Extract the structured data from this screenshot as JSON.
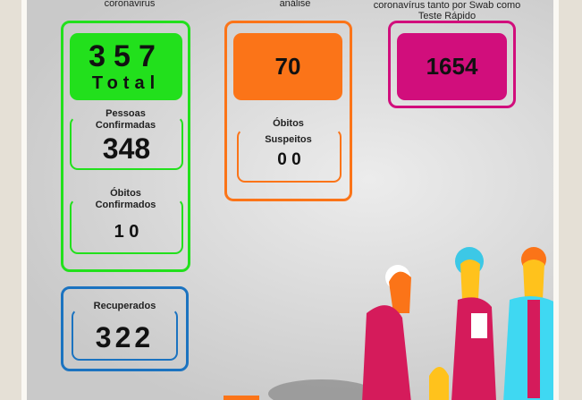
{
  "captions": {
    "col1": "coronavirus",
    "col2": "análise",
    "col3_line1": "coronavírus tanto por Swab como",
    "col3_line2": "Teste Rápido"
  },
  "total": {
    "value": "357",
    "label": "Total"
  },
  "confirmados": {
    "label_line1": "Pessoas",
    "label_line2": "Confirmadas",
    "value": "348"
  },
  "obitos_confirmados": {
    "label_line1": "Óbitos",
    "label_line2": "Confirmados",
    "value": "1 0"
  },
  "analise": {
    "value": "70"
  },
  "obitos_suspeitos": {
    "label_line1": "Óbitos",
    "label_line2": "Suspeitos",
    "value": "0 0"
  },
  "testes": {
    "value": "1654"
  },
  "recuperados": {
    "label": "Recuperados",
    "value": "322"
  },
  "colors": {
    "green": "#22e01c",
    "orange": "#fb7418",
    "magenta": "#d10e7c",
    "blue": "#1b73c0"
  }
}
